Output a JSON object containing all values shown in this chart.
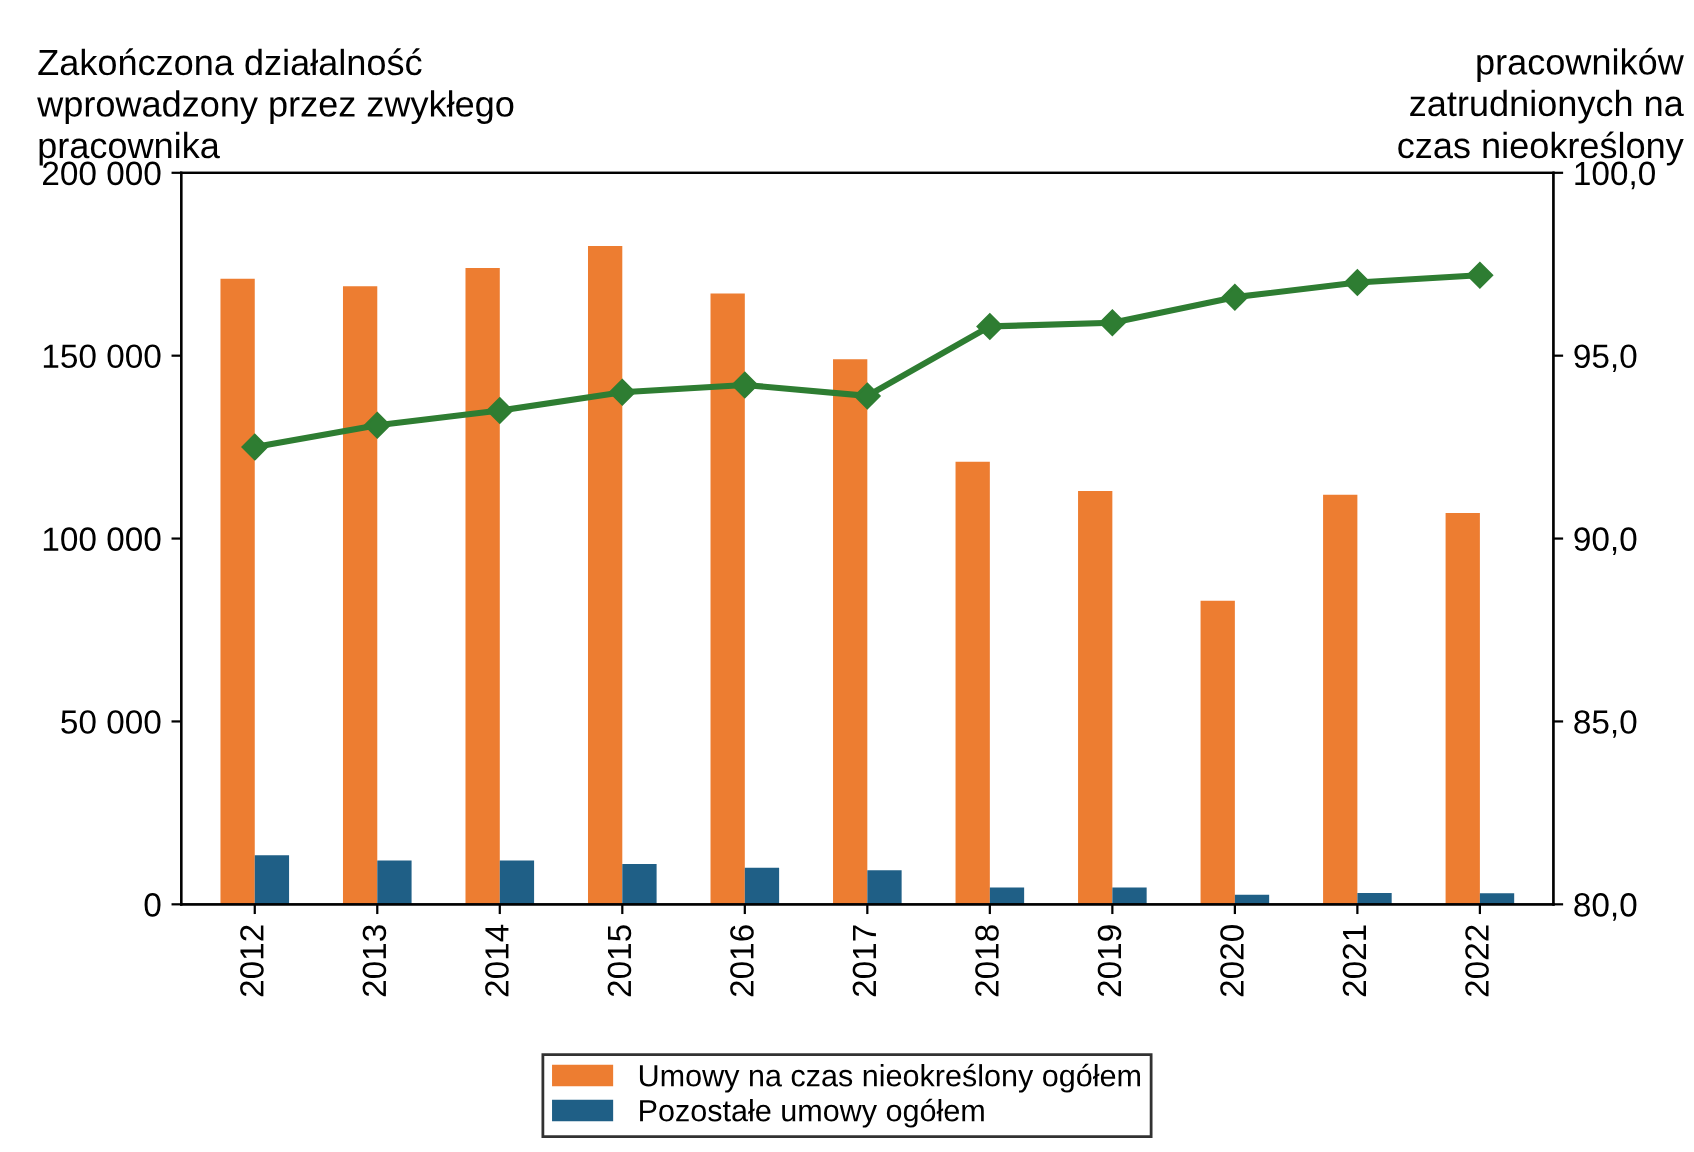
{
  "chart_data": {
    "type": "bar",
    "ylabel": "Zakończona działalność\nwprowadzony przez zwykłego\npracownika",
    "y2label": "pracowników\nzatrudnionych na\nczas nieokreślony",
    "categories": [
      "2012",
      "2013",
      "2014",
      "2015",
      "2016",
      "2017",
      "2018",
      "2019",
      "2020",
      "2021",
      "2022"
    ],
    "series": [
      {
        "name": "Umowy na czas nieokreślony ogółem",
        "color": "#ed7d31",
        "values": [
          171000,
          169000,
          174000,
          180000,
          167000,
          149000,
          121000,
          113000,
          83000,
          112000,
          107000
        ]
      },
      {
        "name": "Pozostałe umowy ogółem",
        "color": "#1f5f86",
        "values": [
          13400,
          12000,
          12000,
          11000,
          10000,
          9300,
          4600,
          4600,
          2600,
          3100,
          3000
        ]
      },
      {
        "type": "line",
        "axis": "y2",
        "color": "#2e7d32",
        "marker": "diamond",
        "values": [
          92.5,
          93.1,
          93.5,
          94.0,
          94.2,
          93.9,
          95.8,
          95.9,
          96.6,
          97.0,
          97.2
        ]
      }
    ],
    "ylim": [
      0,
      200000
    ],
    "yticks": [
      {
        "value": 0,
        "label": "0"
      },
      {
        "value": 50000,
        "label": "50 000"
      },
      {
        "value": 100000,
        "label": "100 000"
      },
      {
        "value": 150000,
        "label": "150 000"
      },
      {
        "value": 200000,
        "label": "200 000"
      }
    ],
    "y2lim": [
      80,
      100
    ],
    "y2ticks": [
      {
        "value": 80,
        "label": "80,0"
      },
      {
        "value": 85,
        "label": "85,0"
      },
      {
        "value": 90,
        "label": "90,0"
      },
      {
        "value": 95,
        "label": "95,0"
      },
      {
        "value": 100,
        "label": "100,0"
      }
    ],
    "grid": false,
    "legend": "bottom"
  }
}
